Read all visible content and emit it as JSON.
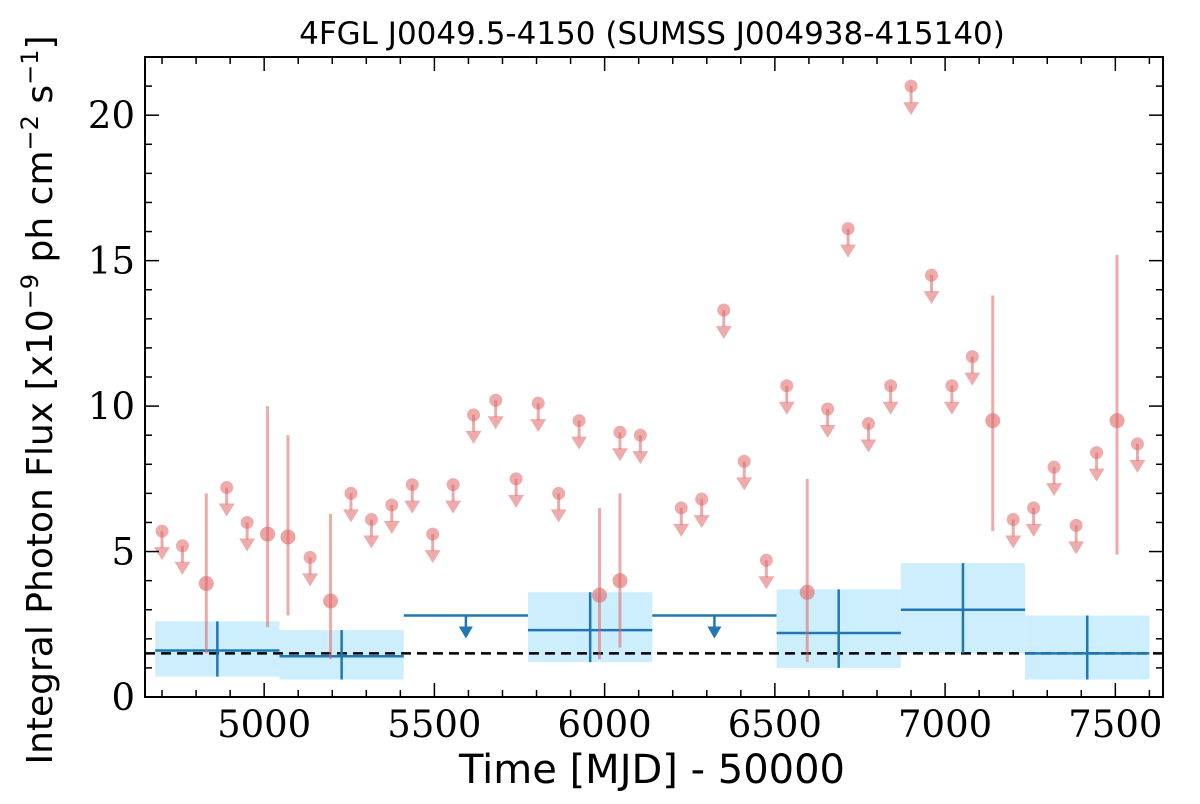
{
  "chart_data": {
    "type": "scatter",
    "title": "4FGL J0049.5-4150 (SUMSS J004938-415140)",
    "xlabel": "Time [MJD] - 50000",
    "ylabel_main": "Integral Photon Flux [x10",
    "ylabel_exp1": "−9",
    "ylabel_mid": " ph cm",
    "ylabel_exp2": "−2",
    "ylabel_mid2": " s",
    "ylabel_exp3": "−1",
    "ylabel_end": "]",
    "xlim": [
      4650,
      7640
    ],
    "ylim": [
      0,
      22
    ],
    "xticks": [
      5000,
      5500,
      6000,
      6500,
      7000,
      7500
    ],
    "xtick_labels": [
      "5000",
      "5500",
      "6000",
      "6500",
      "7000",
      "7500"
    ],
    "yticks": [
      0,
      5,
      10,
      15,
      20
    ],
    "ytick_labels": [
      "0",
      "5",
      "10",
      "15",
      "20"
    ],
    "baseline_flux": 1.5,
    "colors": {
      "short_bin": "#e06666",
      "long_bin": "#1f77b4",
      "long_bin_band": "#cdeefc",
      "baseline": "#000000"
    },
    "short_bin_upper_limits": [
      {
        "x": 4700,
        "y": 5.7
      },
      {
        "x": 4760,
        "y": 5.2
      },
      {
        "x": 4890,
        "y": 7.2
      },
      {
        "x": 4950,
        "y": 6.0
      },
      {
        "x": 5135,
        "y": 4.8
      },
      {
        "x": 5255,
        "y": 7.0
      },
      {
        "x": 5315,
        "y": 6.1
      },
      {
        "x": 5375,
        "y": 6.6
      },
      {
        "x": 5435,
        "y": 7.3
      },
      {
        "x": 5495,
        "y": 5.6
      },
      {
        "x": 5555,
        "y": 7.3
      },
      {
        "x": 5615,
        "y": 9.7
      },
      {
        "x": 5680,
        "y": 10.2
      },
      {
        "x": 5740,
        "y": 7.5
      },
      {
        "x": 5805,
        "y": 10.1
      },
      {
        "x": 5865,
        "y": 7.0
      },
      {
        "x": 5925,
        "y": 9.5
      },
      {
        "x": 6045,
        "y": 9.1
      },
      {
        "x": 6105,
        "y": 9.0
      },
      {
        "x": 6225,
        "y": 6.5
      },
      {
        "x": 6285,
        "y": 6.8
      },
      {
        "x": 6350,
        "y": 13.3
      },
      {
        "x": 6410,
        "y": 8.1
      },
      {
        "x": 6475,
        "y": 4.7
      },
      {
        "x": 6535,
        "y": 10.7
      },
      {
        "x": 6655,
        "y": 9.9
      },
      {
        "x": 6715,
        "y": 16.1
      },
      {
        "x": 6775,
        "y": 9.4
      },
      {
        "x": 6840,
        "y": 10.7
      },
      {
        "x": 6900,
        "y": 21.0
      },
      {
        "x": 6960,
        "y": 14.5
      },
      {
        "x": 7020,
        "y": 10.7
      },
      {
        "x": 7080,
        "y": 11.7
      },
      {
        "x": 7200,
        "y": 6.1
      },
      {
        "x": 7260,
        "y": 6.5
      },
      {
        "x": 7320,
        "y": 7.9
      },
      {
        "x": 7385,
        "y": 5.9
      },
      {
        "x": 7445,
        "y": 8.4
      },
      {
        "x": 7565,
        "y": 8.7
      }
    ],
    "short_bin_detections": [
      {
        "x": 4830,
        "y": 3.9,
        "lo": 1.5,
        "hi": 7.0
      },
      {
        "x": 5010,
        "y": 5.6,
        "lo": 2.4,
        "hi": 10.0
      },
      {
        "x": 5070,
        "y": 5.5,
        "lo": 2.8,
        "hi": 9.0
      },
      {
        "x": 5195,
        "y": 3.3,
        "lo": 1.3,
        "hi": 6.3
      },
      {
        "x": 5985,
        "y": 3.5,
        "lo": 1.3,
        "hi": 6.5
      },
      {
        "x": 6045,
        "y": 4.0,
        "lo": 1.7,
        "hi": 7.0
      },
      {
        "x": 6595,
        "y": 3.6,
        "lo": 1.2,
        "hi": 7.5
      },
      {
        "x": 7140,
        "y": 9.5,
        "lo": 5.7,
        "hi": 13.8
      },
      {
        "x": 7505,
        "y": 9.5,
        "lo": 4.9,
        "hi": 15.2
      }
    ],
    "long_bins": [
      {
        "x0": 4680,
        "x1": 5045,
        "y": 1.6,
        "lo": 0.7,
        "hi": 2.6
      },
      {
        "x0": 5045,
        "x1": 5410,
        "y": 1.4,
        "lo": 0.6,
        "hi": 2.3
      },
      {
        "x0": 5775,
        "x1": 6140,
        "y": 2.3,
        "lo": 1.2,
        "hi": 3.6
      },
      {
        "x0": 6505,
        "x1": 6870,
        "y": 2.2,
        "lo": 1.0,
        "hi": 3.7
      },
      {
        "x0": 6870,
        "x1": 7235,
        "y": 3.0,
        "lo": 1.5,
        "hi": 4.6
      },
      {
        "x0": 7235,
        "x1": 7600,
        "y": 1.5,
        "lo": 0.6,
        "hi": 2.8
      }
    ],
    "long_bin_upper_limits": [
      {
        "x0": 5410,
        "x1": 5775,
        "y": 2.8
      },
      {
        "x0": 6140,
        "x1": 6505,
        "y": 2.8
      }
    ]
  }
}
